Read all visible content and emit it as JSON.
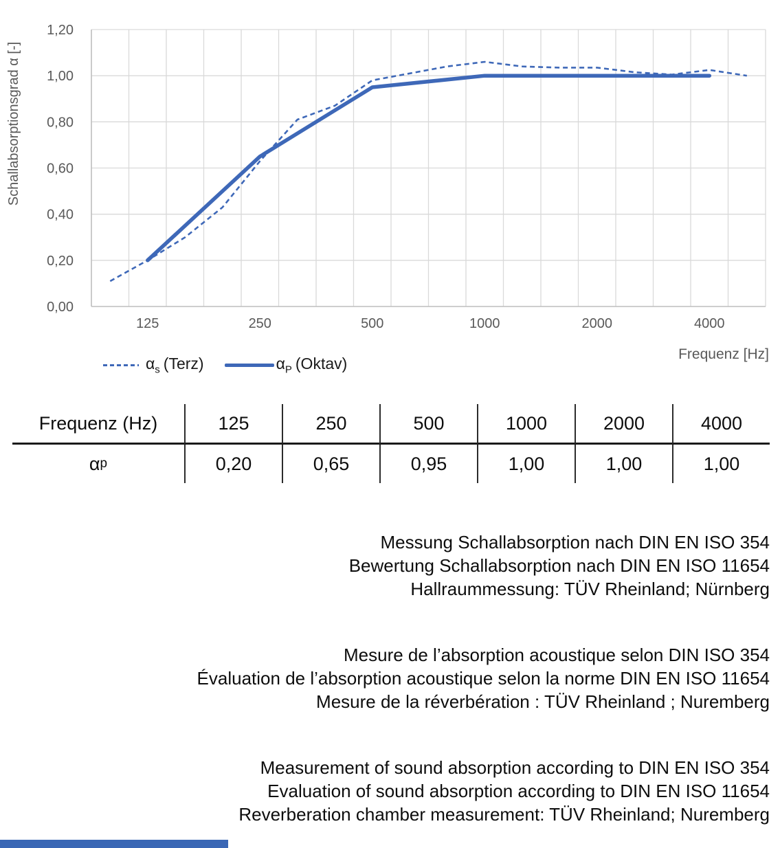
{
  "chart_data": {
    "type": "line",
    "title": "",
    "xlabel": "Frequenz [Hz]",
    "ylabel": "Schallabsorptionsgrad α [-]",
    "x_scale": "logarithmic (third-octave category bands)",
    "grid": "both",
    "legend_position": "bottom-left",
    "categories": [
      "100",
      "125",
      "160",
      "200",
      "250",
      "315",
      "400",
      "500",
      "630",
      "800",
      "1000",
      "1250",
      "1600",
      "2000",
      "2500",
      "3150",
      "4000",
      "5000"
    ],
    "x_tick_labels": [
      "125",
      "250",
      "500",
      "1000",
      "2000",
      "4000"
    ],
    "x_tick_category_indices": [
      1,
      4,
      7,
      10,
      13,
      16
    ],
    "ylim": [
      0,
      1.2
    ],
    "y_ticks": {
      "values": [
        0,
        0.2,
        0.4,
        0.6,
        0.8,
        1.0,
        1.2
      ],
      "labels": [
        "0,00",
        "0,20",
        "0,40",
        "0,60",
        "0,80",
        "1,00",
        "1,20"
      ]
    },
    "series": [
      {
        "name": "αs (Terz)",
        "line_style": "dashed",
        "color": "#3e68b8",
        "categories": [
          "100",
          "125",
          "160",
          "200",
          "250",
          "315",
          "400",
          "500",
          "630",
          "800",
          "1000",
          "1250",
          "1600",
          "2000",
          "2500",
          "3150",
          "4000",
          "5000"
        ],
        "values": [
          0.11,
          0.2,
          0.3,
          0.43,
          0.63,
          0.81,
          0.87,
          0.98,
          1.01,
          1.04,
          1.06,
          1.04,
          1.035,
          1.035,
          1.015,
          1.005,
          1.025,
          1.0
        ]
      },
      {
        "name": "αP (Oktav)",
        "line_style": "solid",
        "color": "#3e68b8",
        "categories": [
          "125",
          "250",
          "500",
          "1000",
          "2000",
          "4000"
        ],
        "values": [
          0.2,
          0.65,
          0.95,
          1.0,
          1.0,
          1.0
        ]
      }
    ]
  },
  "legend": {
    "items": [
      {
        "alpha": "α",
        "sub": "s",
        "rest": "(Terz)",
        "style": "dashed"
      },
      {
        "alpha": "α",
        "sub": "P",
        "rest": "(Oktav)",
        "style": "solid"
      }
    ]
  },
  "table": {
    "header_label": "Frequenz (Hz)",
    "header_values": [
      "125",
      "250",
      "500",
      "1000",
      "2000",
      "4000"
    ],
    "row_label": {
      "alpha": "α",
      "sub": "p"
    },
    "values": [
      "0,20",
      "0,65",
      "0,95",
      "1,00",
      "1,00",
      "1,00"
    ]
  },
  "notes_de": {
    "lines": [
      "Messung Schallabsorption nach DIN EN ISO 354",
      "Bewertung Schallabsorption nach DIN EN ISO 11654",
      "Hallraummessung: TÜV Rheinland; Nürnberg"
    ]
  },
  "notes_fr": {
    "lines": [
      "Mesure de l’absorption acoustique selon DIN ISO 354",
      "Évaluation de l’absorption acoustique selon la norme DIN EN ISO 11654",
      "Mesure de la réverbération : TÜV Rheinland ; Nuremberg"
    ]
  },
  "notes_en": {
    "lines": [
      "Measurement of sound absorption according to DIN EN ISO 354",
      "Evaluation of sound absorption according to DIN EN ISO 11654",
      "Reverberation chamber measurement: TÜV Rheinland; Nuremberg"
    ]
  }
}
